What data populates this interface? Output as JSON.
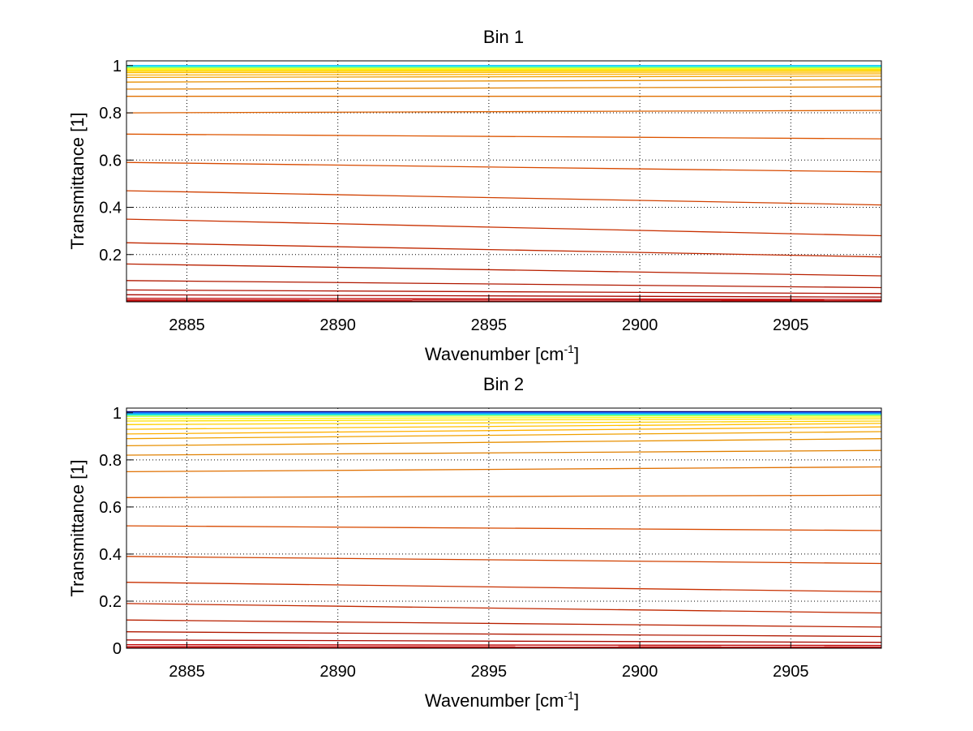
{
  "figure": {
    "background": "#ffffff"
  },
  "chart_data": [
    {
      "type": "line",
      "title": "Bin 1",
      "xlabel": "Wavenumber [cm",
      "xlabel_sup": "-1",
      "xlabel_close": "]",
      "ylabel": "Transmittance [1]",
      "xlim": [
        2883,
        2908
      ],
      "ylim": [
        0,
        1.02
      ],
      "xticks": [
        2885,
        2890,
        2895,
        2900,
        2905
      ],
      "xtick_labels": [
        "2885",
        "2890",
        "2895",
        "2900",
        "2905"
      ],
      "yticks": [
        0.2,
        0.4,
        0.6,
        0.8,
        1
      ],
      "ytick_labels": [
        "0.2",
        "0.4",
        "0.6",
        "0.8",
        "1"
      ],
      "grid": true,
      "series": [
        {
          "x": [
            2883,
            2908
          ],
          "y": [
            1.0,
            1.0
          ],
          "color": "#00c0ff"
        },
        {
          "x": [
            2883,
            2908
          ],
          "y": [
            0.995,
            0.995
          ],
          "color": "#40ffc0"
        },
        {
          "x": [
            2883,
            2908
          ],
          "y": [
            0.99,
            0.99
          ],
          "color": "#c0ff40"
        },
        {
          "x": [
            2883,
            2908
          ],
          "y": [
            0.985,
            0.985
          ],
          "color": "#ffff00"
        },
        {
          "x": [
            2883,
            2908
          ],
          "y": [
            0.98,
            0.983
          ],
          "color": "#ffe000"
        },
        {
          "x": [
            2883,
            2908
          ],
          "y": [
            0.975,
            0.978
          ],
          "color": "#ffd000"
        },
        {
          "x": [
            2883,
            2908
          ],
          "y": [
            0.97,
            0.972
          ],
          "color": "#ffc000"
        },
        {
          "x": [
            2883,
            2908
          ],
          "y": [
            0.96,
            0.965
          ],
          "color": "#ffb000"
        },
        {
          "x": [
            2883,
            2908
          ],
          "y": [
            0.95,
            0.955
          ],
          "color": "#f0a000"
        },
        {
          "x": [
            2883,
            2908
          ],
          "y": [
            0.93,
            0.94
          ],
          "color": "#e89000"
        },
        {
          "x": [
            2883,
            2908
          ],
          "y": [
            0.9,
            0.91
          ],
          "color": "#e08000"
        },
        {
          "x": [
            2883,
            2908
          ],
          "y": [
            0.87,
            0.87
          ],
          "color": "#e07000"
        },
        {
          "x": [
            2883,
            2908
          ],
          "y": [
            0.8,
            0.81
          ],
          "color": "#dd6000"
        },
        {
          "x": [
            2883,
            2908
          ],
          "y": [
            0.71,
            0.69
          ],
          "color": "#dd5500"
        },
        {
          "x": [
            2883,
            2908
          ],
          "y": [
            0.59,
            0.55
          ],
          "color": "#d84a00"
        },
        {
          "x": [
            2883,
            2908
          ],
          "y": [
            0.47,
            0.41
          ],
          "color": "#d04000"
        },
        {
          "x": [
            2883,
            2908
          ],
          "y": [
            0.35,
            0.28
          ],
          "color": "#c83000"
        },
        {
          "x": [
            2883,
            2908
          ],
          "y": [
            0.25,
            0.19
          ],
          "color": "#c02800"
        },
        {
          "x": [
            2883,
            2908
          ],
          "y": [
            0.16,
            0.11
          ],
          "color": "#b82000"
        },
        {
          "x": [
            2883,
            2908
          ],
          "y": [
            0.09,
            0.06
          ],
          "color": "#b01800"
        },
        {
          "x": [
            2883,
            2908
          ],
          "y": [
            0.05,
            0.035
          ],
          "color": "#b01000"
        },
        {
          "x": [
            2883,
            2908
          ],
          "y": [
            0.03,
            0.02
          ],
          "color": "#a80800"
        },
        {
          "x": [
            2883,
            2908
          ],
          "y": [
            0.015,
            0.01
          ],
          "color": "#c00000"
        },
        {
          "x": [
            2883,
            2908
          ],
          "y": [
            0.008,
            0.006
          ],
          "color": "#c00000"
        },
        {
          "x": [
            2883,
            2908
          ],
          "y": [
            0.003,
            0.002
          ],
          "color": "#c00000"
        }
      ]
    },
    {
      "type": "line",
      "title": "Bin 2",
      "xlabel": "Wavenumber [cm",
      "xlabel_sup": "-1",
      "xlabel_close": "]",
      "ylabel": "Transmittance [1]",
      "xlim": [
        2883,
        2908
      ],
      "ylim": [
        0,
        1.02
      ],
      "xticks": [
        2885,
        2890,
        2895,
        2900,
        2905
      ],
      "xtick_labels": [
        "2885",
        "2890",
        "2895",
        "2900",
        "2905"
      ],
      "yticks": [
        0,
        0.2,
        0.4,
        0.6,
        0.8,
        1
      ],
      "ytick_labels": [
        "0",
        "0.2",
        "0.4",
        "0.6",
        "0.8",
        "1"
      ],
      "grid": true,
      "series": [
        {
          "x": [
            2883,
            2908
          ],
          "y": [
            1.005,
            1.005
          ],
          "color": "#000080"
        },
        {
          "x": [
            2883,
            2908
          ],
          "y": [
            1.0,
            1.0
          ],
          "color": "#0060ff"
        },
        {
          "x": [
            2883,
            2908
          ],
          "y": [
            0.995,
            0.995
          ],
          "color": "#00c0ff"
        },
        {
          "x": [
            2883,
            2908
          ],
          "y": [
            0.99,
            0.992
          ],
          "color": "#40ffc0"
        },
        {
          "x": [
            2883,
            2908
          ],
          "y": [
            0.985,
            0.988
          ],
          "color": "#c0ff40"
        },
        {
          "x": [
            2883,
            2908
          ],
          "y": [
            0.975,
            0.982
          ],
          "color": "#ffff00"
        },
        {
          "x": [
            2883,
            2908
          ],
          "y": [
            0.965,
            0.975
          ],
          "color": "#ffe000"
        },
        {
          "x": [
            2883,
            2908
          ],
          "y": [
            0.95,
            0.965
          ],
          "color": "#ffd000"
        },
        {
          "x": [
            2883,
            2908
          ],
          "y": [
            0.93,
            0.955
          ],
          "color": "#ffc000"
        },
        {
          "x": [
            2883,
            2908
          ],
          "y": [
            0.91,
            0.94
          ],
          "color": "#ffb000"
        },
        {
          "x": [
            2883,
            2908
          ],
          "y": [
            0.89,
            0.92
          ],
          "color": "#f0a000"
        },
        {
          "x": [
            2883,
            2908
          ],
          "y": [
            0.86,
            0.89
          ],
          "color": "#e89000"
        },
        {
          "x": [
            2883,
            2908
          ],
          "y": [
            0.82,
            0.84
          ],
          "color": "#e08000"
        },
        {
          "x": [
            2883,
            2908
          ],
          "y": [
            0.75,
            0.77
          ],
          "color": "#e07000"
        },
        {
          "x": [
            2883,
            2908
          ],
          "y": [
            0.64,
            0.65
          ],
          "color": "#dd6000"
        },
        {
          "x": [
            2883,
            2908
          ],
          "y": [
            0.52,
            0.5
          ],
          "color": "#d84a00"
        },
        {
          "x": [
            2883,
            2908
          ],
          "y": [
            0.39,
            0.36
          ],
          "color": "#d04000"
        },
        {
          "x": [
            2883,
            2908
          ],
          "y": [
            0.28,
            0.24
          ],
          "color": "#c83000"
        },
        {
          "x": [
            2883,
            2908
          ],
          "y": [
            0.19,
            0.15
          ],
          "color": "#c02800"
        },
        {
          "x": [
            2883,
            2908
          ],
          "y": [
            0.12,
            0.09
          ],
          "color": "#b82000"
        },
        {
          "x": [
            2883,
            2908
          ],
          "y": [
            0.07,
            0.05
          ],
          "color": "#b01800"
        },
        {
          "x": [
            2883,
            2908
          ],
          "y": [
            0.035,
            0.025
          ],
          "color": "#a80800"
        },
        {
          "x": [
            2883,
            2908
          ],
          "y": [
            0.015,
            0.012
          ],
          "color": "#c00000"
        },
        {
          "x": [
            2883,
            2908
          ],
          "y": [
            0.007,
            0.005
          ],
          "color": "#c00000"
        },
        {
          "x": [
            2883,
            2908
          ],
          "y": [
            0.002,
            0.001
          ],
          "color": "#c00000"
        }
      ]
    }
  ]
}
